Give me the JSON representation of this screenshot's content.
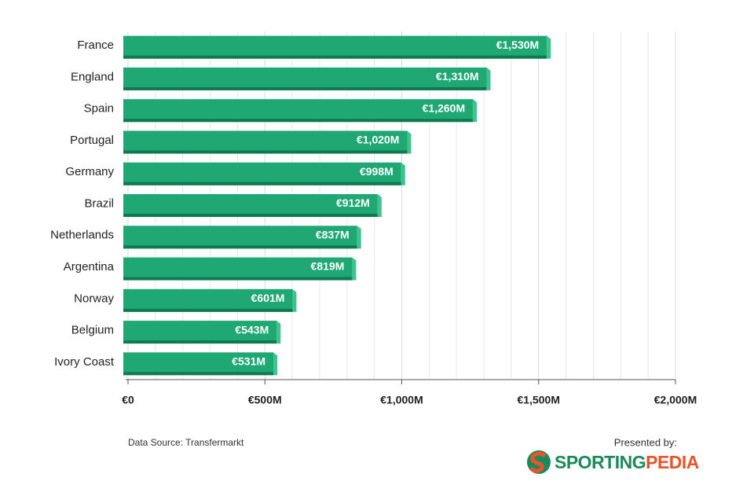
{
  "chart_data": {
    "type": "hbar",
    "categories": [
      "France",
      "England",
      "Spain",
      "Portugal",
      "Germany",
      "Brazil",
      "Netherlands",
      "Argentina",
      "Norway",
      "Belgium",
      "Ivory Coast"
    ],
    "values": [
      1530,
      1310,
      1260,
      1020,
      998,
      912,
      837,
      819,
      601,
      543,
      531
    ],
    "value_labels": [
      "€1,530M",
      "€1,310M",
      "€1,260M",
      "€1,020M",
      "€998M",
      "€912M",
      "€837M",
      "€819M",
      "€601M",
      "€543M",
      "€531M"
    ],
    "color": "#1fa774",
    "xlim": [
      0,
      2000
    ],
    "xticks": [
      {
        "value": 0,
        "label": "€0"
      },
      {
        "value": 500,
        "label": "€500M"
      },
      {
        "value": 1000,
        "label": "€1,000M"
      },
      {
        "value": 1500,
        "label": "€1,500M"
      },
      {
        "value": 2000,
        "label": "€2,000M"
      }
    ],
    "xminor": [
      100,
      200,
      300,
      400,
      600,
      700,
      800,
      900,
      1100,
      1200,
      1300,
      1400,
      1600,
      1700,
      1800,
      1900
    ],
    "grid": true,
    "source": "Data Source: Transfermarkt",
    "presented_by": "Presented by:",
    "logo": [
      "SPORTING",
      "PEDIA"
    ]
  }
}
